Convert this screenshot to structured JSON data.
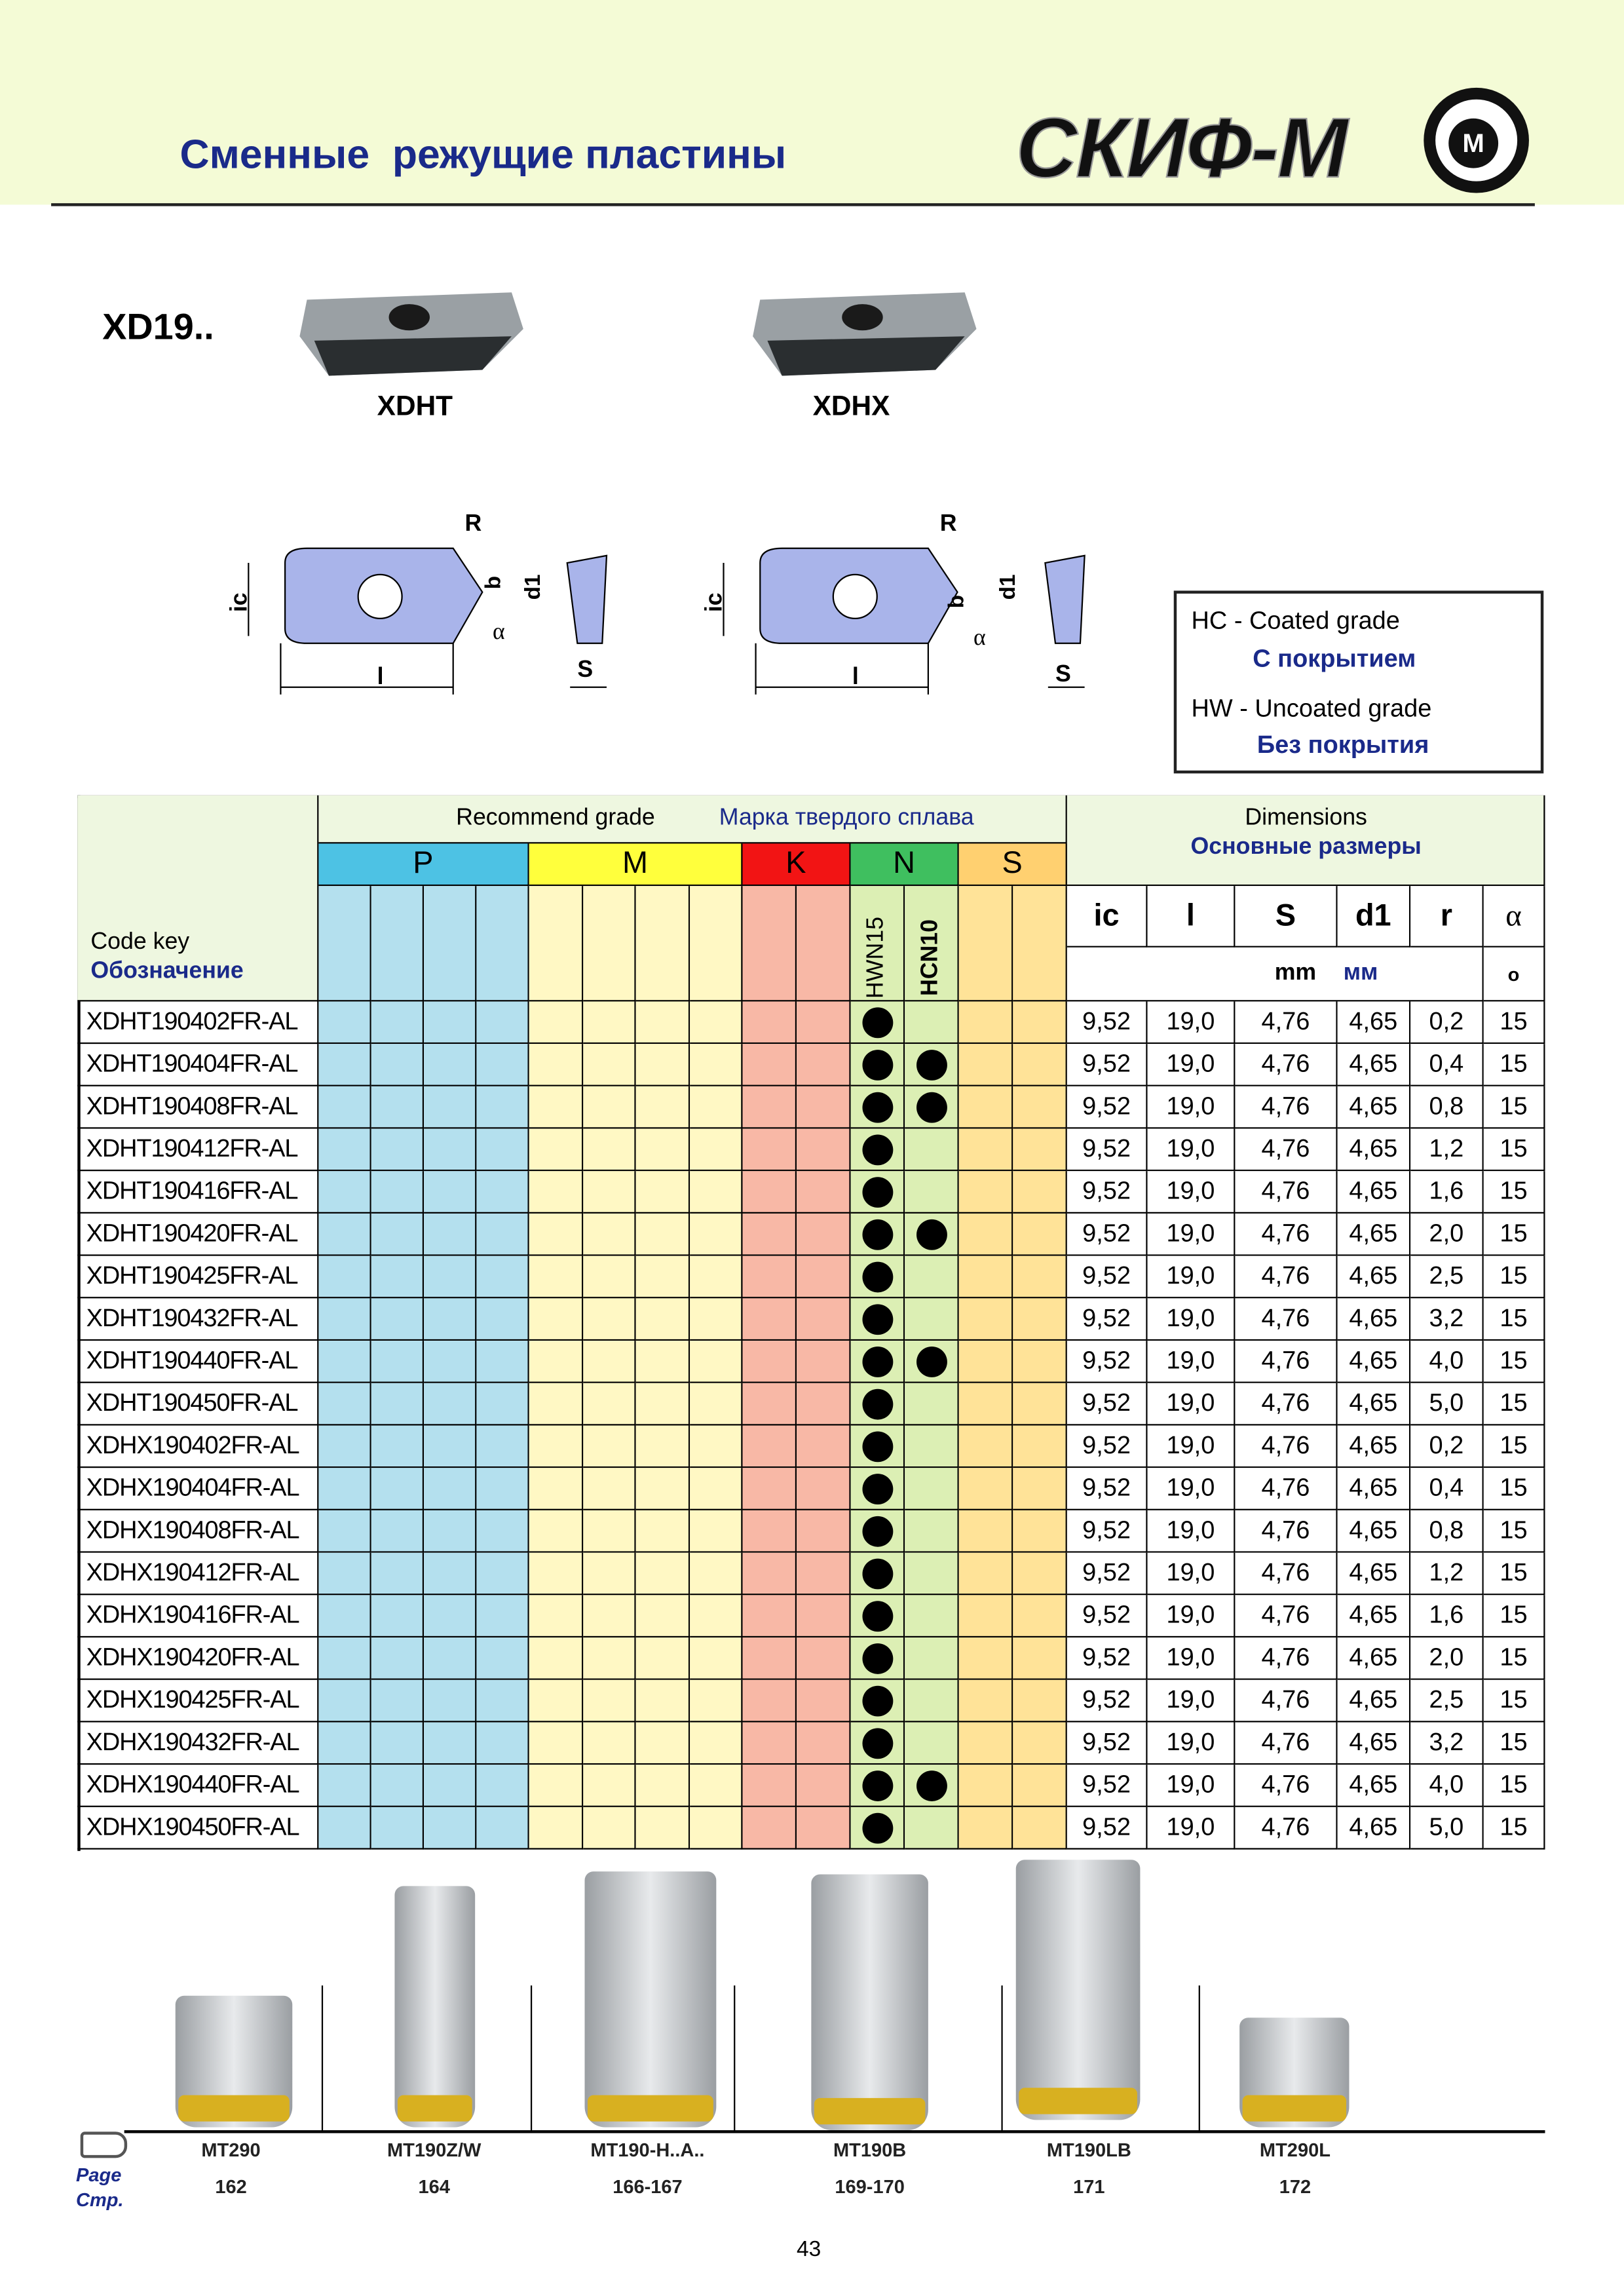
{
  "header": {
    "title": "Сменные  режущие пластины",
    "logo": "СКИФ-М"
  },
  "series": "XD19..",
  "inserts": [
    "XDHT",
    "XDHX"
  ],
  "diagram_labels": {
    "R": "R",
    "b": "b",
    "d1": "d1",
    "ic": "ic",
    "l": "l",
    "S": "S",
    "alpha": "α"
  },
  "legend": [
    {
      "line": "HC - Coated grade",
      "ru": "С покрытием"
    },
    {
      "line": "HW - Uncoated grade",
      "ru": "Без покрытия"
    }
  ],
  "table": {
    "header": {
      "code_key": "Code key",
      "code_key_ru": "Обозначение",
      "grade": "Recommend grade",
      "grade_ru": "Марка твердого сплава",
      "dimensions": "Dimensions",
      "dimensions_ru": "Основные размеры",
      "groups": [
        {
          "name": "P",
          "head": "#4dc2e4",
          "fill": "#b4e0ee",
          "columns": 4
        },
        {
          "name": "M",
          "head": "#ffff3c",
          "fill": "#fff8c4",
          "columns": 4
        },
        {
          "name": "K",
          "head": "#f21414",
          "fill": "#f8b8a6",
          "columns": 2
        },
        {
          "name": "N",
          "head": "#3fbf5f",
          "fill": "#dcefb4",
          "columns": 2
        },
        {
          "name": "S",
          "head": "#ffd070",
          "fill": "#ffe398",
          "columns": 2
        }
      ],
      "grades": [
        "HWN15",
        "HCN10"
      ],
      "dim_columns": [
        "ic",
        "l",
        "S",
        "d1",
        "r",
        "α"
      ],
      "units": "mm",
      "units_ru": "мм",
      "deg": "o"
    },
    "rows": [
      {
        "code": "XDHT190402FR-AL",
        "hwn15": true,
        "hcn10": false,
        "dims": [
          "9,52",
          "19,0",
          "4,76",
          "4,65",
          "0,2",
          "15"
        ]
      },
      {
        "code": "XDHT190404FR-AL",
        "hwn15": true,
        "hcn10": true,
        "dims": [
          "9,52",
          "19,0",
          "4,76",
          "4,65",
          "0,4",
          "15"
        ]
      },
      {
        "code": "XDHT190408FR-AL",
        "hwn15": true,
        "hcn10": true,
        "dims": [
          "9,52",
          "19,0",
          "4,76",
          "4,65",
          "0,8",
          "15"
        ]
      },
      {
        "code": "XDHT190412FR-AL",
        "hwn15": true,
        "hcn10": false,
        "dims": [
          "9,52",
          "19,0",
          "4,76",
          "4,65",
          "1,2",
          "15"
        ]
      },
      {
        "code": "XDHT190416FR-AL",
        "hwn15": true,
        "hcn10": false,
        "dims": [
          "9,52",
          "19,0",
          "4,76",
          "4,65",
          "1,6",
          "15"
        ]
      },
      {
        "code": "XDHT190420FR-AL",
        "hwn15": true,
        "hcn10": true,
        "dims": [
          "9,52",
          "19,0",
          "4,76",
          "4,65",
          "2,0",
          "15"
        ]
      },
      {
        "code": "XDHT190425FR-AL",
        "hwn15": true,
        "hcn10": false,
        "dims": [
          "9,52",
          "19,0",
          "4,76",
          "4,65",
          "2,5",
          "15"
        ]
      },
      {
        "code": "XDHT190432FR-AL",
        "hwn15": true,
        "hcn10": false,
        "dims": [
          "9,52",
          "19,0",
          "4,76",
          "4,65",
          "3,2",
          "15"
        ]
      },
      {
        "code": "XDHT190440FR-AL",
        "hwn15": true,
        "hcn10": true,
        "dims": [
          "9,52",
          "19,0",
          "4,76",
          "4,65",
          "4,0",
          "15"
        ]
      },
      {
        "code": "XDHT190450FR-AL",
        "hwn15": true,
        "hcn10": false,
        "dims": [
          "9,52",
          "19,0",
          "4,76",
          "4,65",
          "5,0",
          "15"
        ]
      },
      {
        "code": "XDHX190402FR-AL",
        "hwn15": true,
        "hcn10": false,
        "dims": [
          "9,52",
          "19,0",
          "4,76",
          "4,65",
          "0,2",
          "15"
        ]
      },
      {
        "code": "XDHX190404FR-AL",
        "hwn15": true,
        "hcn10": false,
        "dims": [
          "9,52",
          "19,0",
          "4,76",
          "4,65",
          "0,4",
          "15"
        ]
      },
      {
        "code": "XDHX190408FR-AL",
        "hwn15": true,
        "hcn10": false,
        "dims": [
          "9,52",
          "19,0",
          "4,76",
          "4,65",
          "0,8",
          "15"
        ]
      },
      {
        "code": "XDHX190412FR-AL",
        "hwn15": true,
        "hcn10": false,
        "dims": [
          "9,52",
          "19,0",
          "4,76",
          "4,65",
          "1,2",
          "15"
        ]
      },
      {
        "code": "XDHX190416FR-AL",
        "hwn15": true,
        "hcn10": false,
        "dims": [
          "9,52",
          "19,0",
          "4,76",
          "4,65",
          "1,6",
          "15"
        ]
      },
      {
        "code": "XDHX190420FR-AL",
        "hwn15": true,
        "hcn10": false,
        "dims": [
          "9,52",
          "19,0",
          "4,76",
          "4,65",
          "2,0",
          "15"
        ]
      },
      {
        "code": "XDHX190425FR-AL",
        "hwn15": true,
        "hcn10": false,
        "dims": [
          "9,52",
          "19,0",
          "4,76",
          "4,65",
          "2,5",
          "15"
        ]
      },
      {
        "code": "XDHX190432FR-AL",
        "hwn15": true,
        "hcn10": false,
        "dims": [
          "9,52",
          "19,0",
          "4,76",
          "4,65",
          "3,2",
          "15"
        ]
      },
      {
        "code": "XDHX190440FR-AL",
        "hwn15": true,
        "hcn10": true,
        "dims": [
          "9,52",
          "19,0",
          "4,76",
          "4,65",
          "4,0",
          "15"
        ]
      },
      {
        "code": "XDHX190450FR-AL",
        "hwn15": true,
        "hcn10": false,
        "dims": [
          "9,52",
          "19,0",
          "4,76",
          "4,65",
          "5,0",
          "15"
        ]
      }
    ]
  },
  "tools": {
    "page_label": "Page",
    "page_label_ru": "Стр.",
    "items": [
      {
        "name": "MT290",
        "page": "162"
      },
      {
        "name": "MT190Z/W",
        "page": "164"
      },
      {
        "name": "MT190-H..A..",
        "page": "166-167"
      },
      {
        "name": "MT190B",
        "page": "169-170"
      },
      {
        "name": "MT190LB",
        "page": "171"
      },
      {
        "name": "MT290L",
        "page": "172"
      }
    ]
  },
  "page_number": "43"
}
